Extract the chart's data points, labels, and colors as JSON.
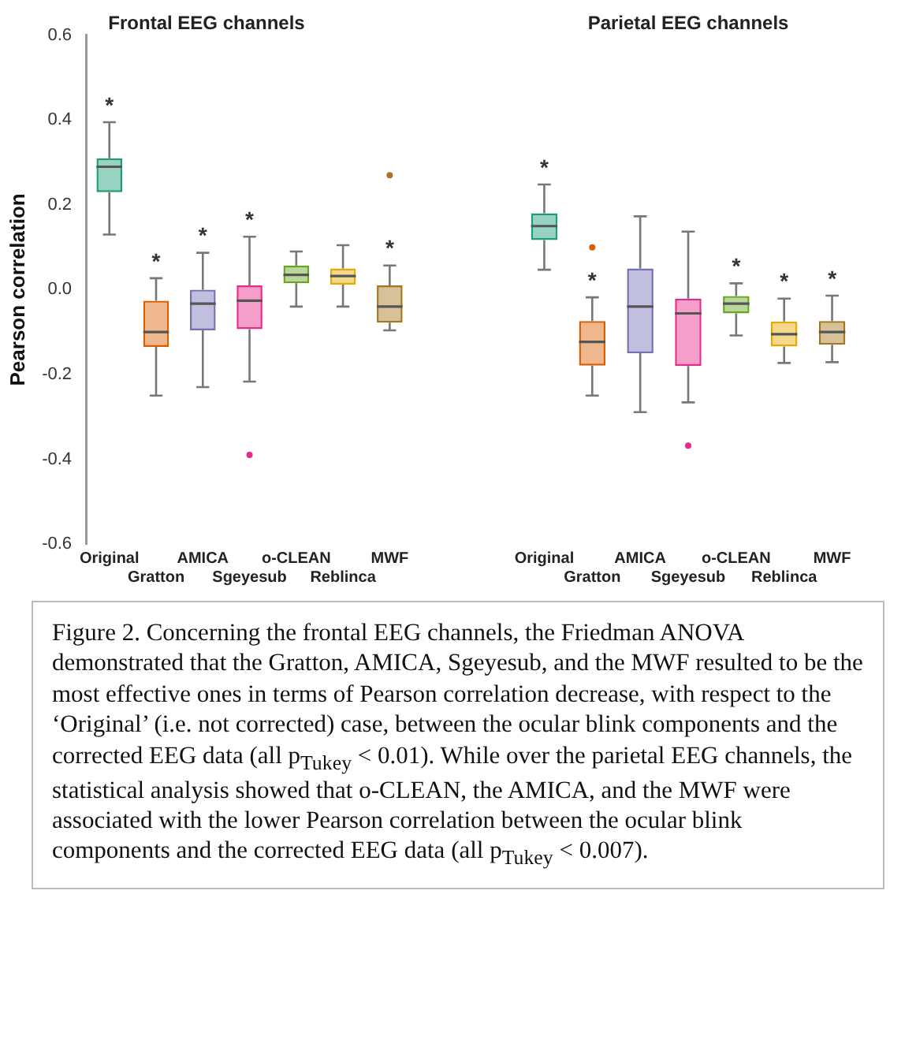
{
  "chart_data": [
    {
      "type": "box",
      "title": "Frontal EEG channels",
      "ylabel": "Pearson correlation",
      "categories": [
        "Original",
        "Gratton",
        "AMICA",
        "Sgeyesub",
        "o-CLEAN",
        "Reblinca",
        "MWF"
      ],
      "colors": [
        "#1b9e77",
        "#d95f02",
        "#7570b3",
        "#e7298a",
        "#66a61e",
        "#e6ab02",
        "#a6761d"
      ],
      "boxes": [
        {
          "low": 0.13,
          "q1": 0.23,
          "median": 0.29,
          "q3": 0.31,
          "high": 0.395
        },
        {
          "low": -0.25,
          "q1": -0.135,
          "median": -0.1,
          "q3": -0.026,
          "high": 0.027
        },
        {
          "low": -0.23,
          "q1": -0.096,
          "median": -0.033,
          "q3": 0.0,
          "high": 0.087
        },
        {
          "low": -0.217,
          "q1": -0.093,
          "median": -0.026,
          "q3": 0.01,
          "high": 0.125,
          "outliers": [
            -0.39
          ]
        },
        {
          "low": -0.04,
          "q1": 0.015,
          "median": 0.035,
          "q3": 0.057,
          "high": 0.09
        },
        {
          "low": -0.04,
          "q1": 0.012,
          "median": 0.032,
          "q3": 0.05,
          "high": 0.105
        },
        {
          "low": -0.096,
          "q1": -0.078,
          "median": -0.04,
          "q3": 0.01,
          "high": 0.057,
          "outliers": [
            0.27
          ]
        }
      ],
      "ylim": [
        -0.6,
        0.6
      ],
      "yticks": [
        -0.6,
        -0.4,
        -0.2,
        {
          "value": 0,
          "label": "0.0"
        },
        0.2,
        0.4,
        0.6
      ],
      "grid": false,
      "value_labels": [
        "*",
        "*",
        "*",
        "*",
        null,
        null,
        "*"
      ],
      "annotations": [
        "Figure 2. Concerning the frontal EEG channels, the Friedman ANOVA demonstrated that the Gratton, AMICA, Sgeyesub, and the MWF resulted to be the most effective ones in terms of Pearson correlation decrease, with respect to the ‘Original’ (i.e. not corrected) case, between the ocular blink components and the corrected EEG data (all p$_{Tukey}$ < 0.01). While over the parietal EEG channels, the statistical analysis showed that o-CLEAN, the AMICA, and the MWF were associated with the lower Pearson correlation between the ocular blink components and the corrected EEG data (all p$_{Tukey}$ < 0.007)."
      ]
    },
    {
      "type": "box",
      "title": "Parietal EEG channels",
      "categories": [
        "Original",
        "Gratton",
        "AMICA",
        "Sgeyesub",
        "o-CLEAN",
        "Reblinca",
        "MWF"
      ],
      "colors": [
        "#1b9e77",
        "#d95f02",
        "#7570b3",
        "#e7298a",
        "#66a61e",
        "#e6ab02",
        "#a6761d"
      ],
      "boxes": [
        {
          "low": 0.047,
          "q1": 0.117,
          "median": 0.15,
          "q3": 0.18,
          "high": 0.248
        },
        {
          "low": -0.25,
          "q1": -0.179,
          "median": -0.123,
          "q3": -0.074,
          "high": -0.018,
          "outliers": [
            0.1
          ]
        },
        {
          "low": -0.289,
          "q1": -0.15,
          "median": -0.04,
          "q3": 0.05,
          "high": 0.173
        },
        {
          "low": -0.266,
          "q1": -0.18,
          "median": -0.056,
          "q3": -0.021,
          "high": 0.137,
          "outliers": [
            -0.368
          ]
        },
        {
          "low": -0.108,
          "q1": -0.056,
          "median": -0.033,
          "q3": -0.015,
          "high": 0.015
        },
        {
          "low": -0.173,
          "q1": -0.134,
          "median": -0.105,
          "q3": -0.075,
          "high": -0.021
        },
        {
          "low": -0.171,
          "q1": -0.13,
          "median": -0.1,
          "q3": -0.074,
          "high": -0.014
        }
      ],
      "ylim": [
        -0.6,
        0.6
      ],
      "grid": false,
      "tick_labels": "x",
      "value_labels": [
        "*",
        "*",
        null,
        null,
        "*",
        "*",
        "*"
      ]
    }
  ]
}
